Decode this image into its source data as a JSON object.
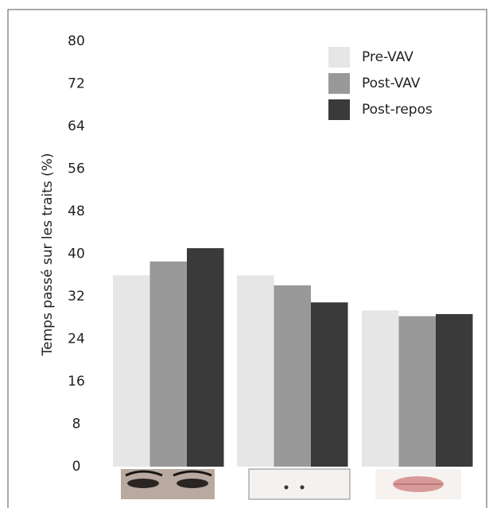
{
  "chart_data": {
    "type": "bar",
    "y_label": "Temps passé sur les traits (%)",
    "categories": [
      null,
      null,
      null
    ],
    "series": [
      {
        "name": "Pre-VAV",
        "color": "#e6e6e6",
        "values": [
          36,
          36,
          29.4
        ]
      },
      {
        "name": "Post-VAV",
        "color": "#999999",
        "values": [
          38.6,
          34.1,
          28.3
        ]
      },
      {
        "name": "Post-repos",
        "color": "#3a3a3a",
        "values": [
          41.1,
          30.9,
          28.7
        ]
      }
    ],
    "ylim": [
      0,
      80
    ],
    "yticks": [
      0,
      8,
      16,
      24,
      32,
      40,
      48,
      56,
      64,
      72,
      80
    ],
    "grid": false,
    "legend": "top-right"
  }
}
